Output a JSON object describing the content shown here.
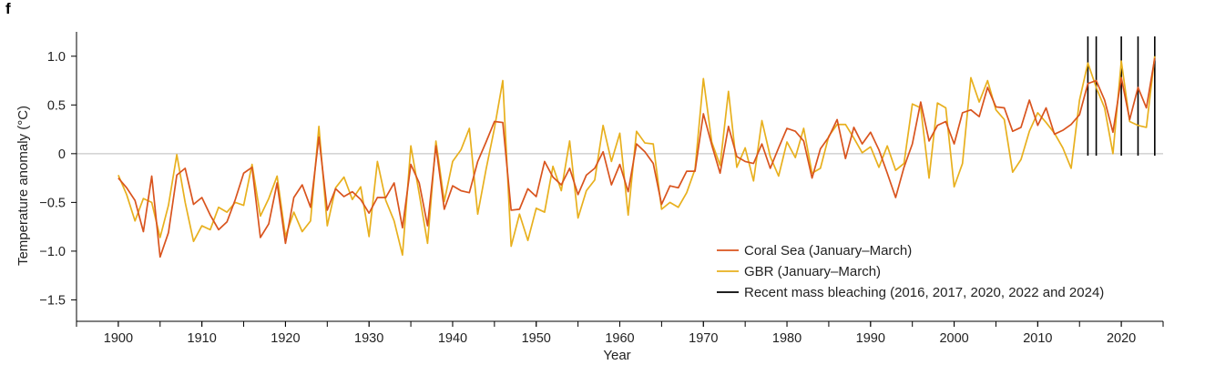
{
  "panel_label": "f",
  "chart_data": {
    "type": "line",
    "xlabel": "Year",
    "ylabel": "Temperature anomaly (°C)",
    "xlim": [
      1895,
      2025
    ],
    "ylim": [
      -1.72,
      1.25
    ],
    "x_ticks": [
      1900,
      1910,
      1920,
      1930,
      1940,
      1950,
      1960,
      1970,
      1980,
      1990,
      2000,
      2010,
      2020
    ],
    "y_ticks": [
      1.0,
      0.5,
      0,
      -0.5,
      -1.0,
      -1.5
    ],
    "y_tick_labels": [
      "1.0",
      "0.5",
      "0",
      "−0.5",
      "−1.0",
      "−1.5"
    ],
    "zero_line": true,
    "grid": false,
    "legend_position": "bottom-right",
    "x_start": 1900,
    "series": [
      {
        "name": "Coral Sea (January–March)",
        "color": "#d9541e",
        "values": [
          -0.25,
          -0.35,
          -0.48,
          -0.8,
          -0.23,
          -1.06,
          -0.81,
          -0.22,
          -0.15,
          -0.52,
          -0.45,
          -0.63,
          -0.78,
          -0.7,
          -0.47,
          -0.2,
          -0.14,
          -0.86,
          -0.72,
          -0.3,
          -0.92,
          -0.45,
          -0.32,
          -0.55,
          0.17,
          -0.58,
          -0.36,
          -0.44,
          -0.39,
          -0.47,
          -0.61,
          -0.45,
          -0.45,
          -0.3,
          -0.76,
          -0.11,
          -0.3,
          -0.74,
          0.08,
          -0.57,
          -0.33,
          -0.38,
          -0.4,
          -0.08,
          0.12,
          0.33,
          0.32,
          -0.58,
          -0.57,
          -0.36,
          -0.44,
          -0.08,
          -0.24,
          -0.32,
          -0.15,
          -0.42,
          -0.22,
          -0.15,
          0.02,
          -0.32,
          -0.11,
          -0.39,
          0.1,
          0.02,
          -0.1,
          -0.52,
          -0.33,
          -0.35,
          -0.18,
          -0.18,
          0.41,
          0.09,
          -0.2,
          0.28,
          -0.03,
          -0.08,
          -0.1,
          0.1,
          -0.15,
          0.06,
          0.26,
          0.23,
          0.13,
          -0.25,
          0.05,
          0.17,
          0.35,
          -0.05,
          0.27,
          0.1,
          0.22,
          0.04,
          -0.2,
          -0.45,
          -0.14,
          0.1,
          0.53,
          0.13,
          0.29,
          0.33,
          0.1,
          0.42,
          0.45,
          0.38,
          0.68,
          0.48,
          0.47,
          0.23,
          0.27,
          0.55,
          0.29,
          0.47,
          0.2,
          0.24,
          0.3,
          0.4,
          0.72,
          0.75,
          0.55,
          0.22,
          0.78,
          0.35,
          0.68,
          0.47,
          0.98
        ]
      },
      {
        "name": "GBR (January–March)",
        "color": "#e8b01e",
        "values": [
          -0.22,
          -0.42,
          -0.69,
          -0.46,
          -0.5,
          -0.86,
          -0.53,
          -0.01,
          -0.5,
          -0.9,
          -0.74,
          -0.78,
          -0.55,
          -0.6,
          -0.5,
          -0.53,
          -0.11,
          -0.64,
          -0.46,
          -0.23,
          -0.85,
          -0.6,
          -0.8,
          -0.69,
          0.28,
          -0.74,
          -0.35,
          -0.24,
          -0.47,
          -0.34,
          -0.85,
          -0.08,
          -0.48,
          -0.69,
          -1.04,
          0.08,
          -0.41,
          -0.92,
          0.13,
          -0.49,
          -0.08,
          0.04,
          0.26,
          -0.62,
          -0.16,
          0.26,
          0.75,
          -0.95,
          -0.62,
          -0.89,
          -0.56,
          -0.6,
          -0.13,
          -0.38,
          0.13,
          -0.66,
          -0.38,
          -0.27,
          0.29,
          -0.08,
          0.21,
          -0.63,
          0.23,
          0.11,
          0.1,
          -0.57,
          -0.5,
          -0.55,
          -0.4,
          -0.16,
          0.77,
          0.12,
          -0.12,
          0.64,
          -0.14,
          0.06,
          -0.28,
          0.34,
          -0.03,
          -0.23,
          0.12,
          -0.04,
          0.26,
          -0.2,
          -0.15,
          0.18,
          0.3,
          0.3,
          0.16,
          0.01,
          0.07,
          -0.14,
          0.08,
          -0.17,
          -0.1,
          0.51,
          0.47,
          -0.25,
          0.52,
          0.47,
          -0.34,
          -0.1,
          0.78,
          0.53,
          0.75,
          0.45,
          0.35,
          -0.19,
          -0.06,
          0.23,
          0.42,
          0.32,
          0.21,
          0.06,
          -0.15,
          0.55,
          0.93,
          0.68,
          0.47,
          0.0,
          0.95,
          0.33,
          0.29,
          0.27,
          1.0
        ]
      }
    ],
    "bleaching_years": [
      2016,
      2017,
      2020,
      2022,
      2024
    ],
    "bleaching_color": "#000000",
    "legend": [
      {
        "label": "Coral Sea (January–March)",
        "color": "#d9541e"
      },
      {
        "label": "GBR (January–March)",
        "color": "#e8b01e"
      },
      {
        "label": "Recent mass bleaching (2016, 2017, 2020, 2022 and 2024)",
        "color": "#000000"
      }
    ]
  }
}
